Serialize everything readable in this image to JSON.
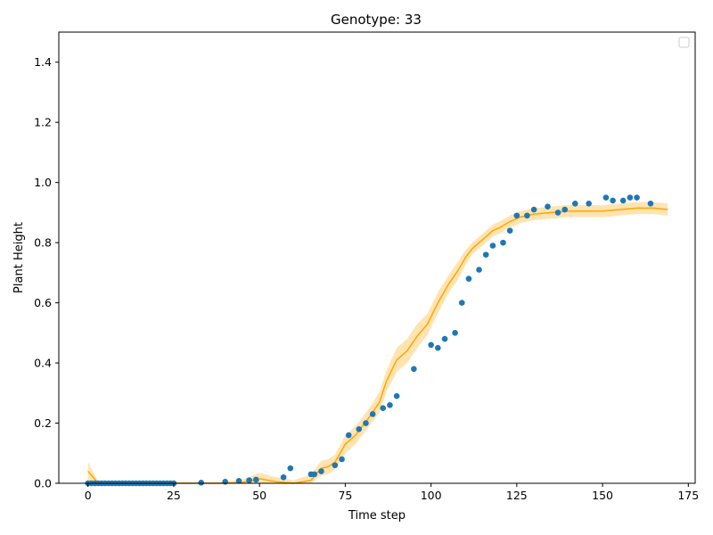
{
  "chart_data": {
    "type": "scatter",
    "title": "Genotype: 33",
    "xlabel": "Time step",
    "ylabel": "Plant Height",
    "xlim": [
      -8.5,
      177
    ],
    "ylim": [
      0,
      1.5
    ],
    "xticks": [
      0,
      25,
      50,
      75,
      100,
      125,
      150,
      175
    ],
    "yticks": [
      0.0,
      0.2,
      0.4,
      0.6,
      0.8,
      1.0,
      1.2,
      1.4
    ],
    "xtick_labels": [
      "0",
      "25",
      "50",
      "75",
      "100",
      "125",
      "150",
      "175"
    ],
    "ytick_labels": [
      "0.0",
      "0.2",
      "0.4",
      "0.6",
      "0.8",
      "1.0",
      "1.2",
      "1.4"
    ],
    "grid": false,
    "legend": {
      "placement": "top-right",
      "entries": []
    },
    "series": [
      {
        "kind": "scatter",
        "color": "#1f77b4",
        "x": [
          0,
          1,
          2,
          3,
          4,
          5,
          6,
          7,
          8,
          9,
          10,
          11,
          12,
          13,
          14,
          15,
          16,
          17,
          18,
          19,
          20,
          21,
          22,
          23,
          24,
          25,
          33,
          40,
          44,
          47,
          49,
          57,
          59,
          65,
          66,
          68,
          72,
          74,
          76,
          79,
          81,
          83,
          86,
          88,
          90,
          95,
          100,
          102,
          104,
          107,
          109,
          111,
          114,
          116,
          118,
          121,
          123,
          125,
          128,
          130,
          134,
          137,
          139,
          142,
          146,
          151,
          153,
          156,
          158,
          160,
          164
        ],
        "y": [
          0,
          0,
          0,
          0,
          0,
          0,
          0,
          0,
          0,
          0,
          0,
          0,
          0,
          0,
          0,
          0,
          0,
          0,
          0,
          0,
          0,
          0,
          0,
          0,
          0,
          0,
          0.002,
          0.005,
          0.008,
          0.01,
          0.012,
          0.02,
          0.05,
          0.03,
          0.03,
          0.04,
          0.06,
          0.08,
          0.16,
          0.18,
          0.2,
          0.23,
          0.25,
          0.26,
          0.29,
          0.38,
          0.46,
          0.45,
          0.48,
          0.5,
          0.6,
          0.68,
          0.71,
          0.76,
          0.79,
          0.8,
          0.84,
          0.89,
          0.89,
          0.91,
          0.92,
          0.9,
          0.91,
          0.93,
          0.93,
          0.95,
          0.94,
          0.94,
          0.95,
          0.95,
          0.93
        ]
      },
      {
        "kind": "line-with-band",
        "color": "#ffa500",
        "x": [
          0,
          3,
          6,
          10,
          15,
          20,
          25,
          30,
          35,
          40,
          45,
          48,
          50,
          55,
          60,
          65,
          68,
          70,
          72,
          75,
          78,
          80,
          82,
          85,
          87,
          90,
          93,
          96,
          99,
          102,
          105,
          108,
          110,
          112,
          115,
          118,
          120,
          123,
          126,
          130,
          135,
          140,
          145,
          150,
          155,
          160,
          165,
          169
        ],
        "y": [
          0.04,
          0.0,
          0.0,
          0.0,
          0.0,
          0.0,
          0.0,
          0.0,
          0.0,
          0.0,
          0.003,
          0.01,
          0.015,
          0.005,
          0.0,
          0.01,
          0.05,
          0.055,
          0.07,
          0.13,
          0.16,
          0.19,
          0.22,
          0.27,
          0.34,
          0.41,
          0.44,
          0.49,
          0.53,
          0.6,
          0.66,
          0.71,
          0.75,
          0.78,
          0.81,
          0.84,
          0.85,
          0.87,
          0.885,
          0.895,
          0.9,
          0.905,
          0.905,
          0.905,
          0.91,
          0.915,
          0.915,
          0.91
        ],
        "band": [
          0.03,
          0.005,
          0.004,
          0.004,
          0.004,
          0.004,
          0.004,
          0.004,
          0.004,
          0.006,
          0.01,
          0.015,
          0.02,
          0.015,
          0.01,
          0.02,
          0.025,
          0.025,
          0.025,
          0.03,
          0.03,
          0.03,
          0.03,
          0.035,
          0.035,
          0.04,
          0.04,
          0.04,
          0.035,
          0.035,
          0.03,
          0.03,
          0.025,
          0.02,
          0.02,
          0.02,
          0.02,
          0.02,
          0.02,
          0.02,
          0.02,
          0.02,
          0.02,
          0.02,
          0.02,
          0.02,
          0.02,
          0.02
        ]
      }
    ]
  }
}
